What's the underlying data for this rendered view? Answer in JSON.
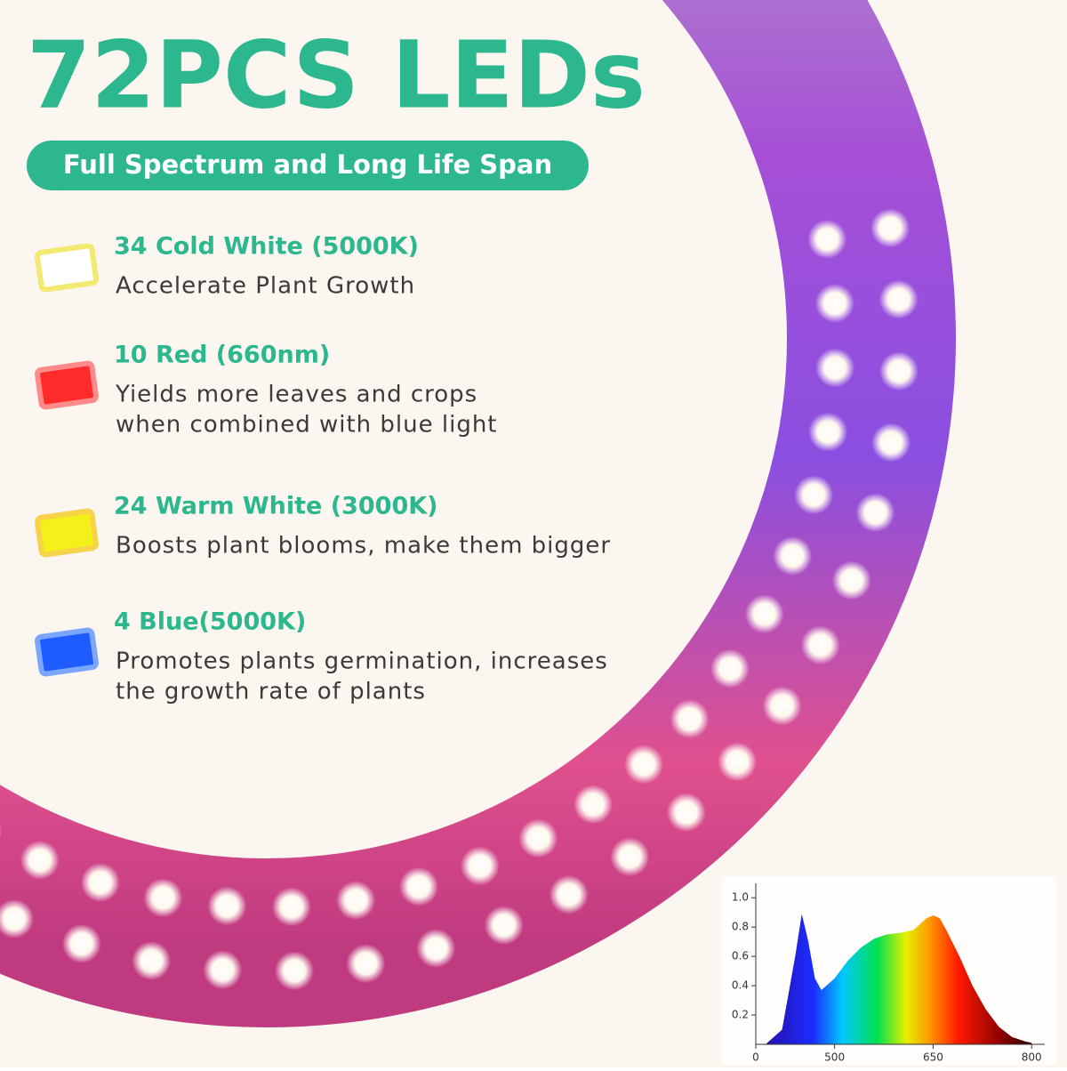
{
  "header": {
    "title": "72PCS LEDs",
    "badge": "Full Spectrum and Long Life Span"
  },
  "items": [
    {
      "heading": "34 Cold White  (5000K)",
      "lines": [
        "Accelerate Plant Growth"
      ]
    },
    {
      "heading": "10 Red  (660nm)",
      "lines": [
        "Yields more leaves and crops",
        "when combined with blue light"
      ]
    },
    {
      "heading": "24 Warm White  (3000K)",
      "lines": [
        "Boosts plant blooms, make them bigger"
      ]
    },
    {
      "heading": "4 Blue(5000K)",
      "lines": [
        "Promotes plants germination, increases",
        "the growth rate of plants"
      ]
    }
  ],
  "chart_data": {
    "type": "area",
    "x": [
      395,
      420,
      440,
      450,
      460,
      470,
      480,
      500,
      520,
      540,
      560,
      580,
      600,
      620,
      640,
      650,
      660,
      670,
      690,
      710,
      730,
      750,
      770,
      790,
      800
    ],
    "values": [
      0,
      0.1,
      0.6,
      0.89,
      0.7,
      0.45,
      0.37,
      0.45,
      0.57,
      0.66,
      0.72,
      0.75,
      0.76,
      0.78,
      0.86,
      0.88,
      0.86,
      0.78,
      0.6,
      0.4,
      0.24,
      0.12,
      0.05,
      0.02,
      0.01
    ],
    "xlim": [
      380,
      820
    ],
    "ylim": [
      0,
      1.05
    ],
    "xticks": [
      {
        "value": 380,
        "label": "0"
      },
      500,
      650,
      800
    ],
    "yticks": [
      0.2,
      0.4,
      0.6,
      0.8,
      {
        "value": 1.0,
        "label": "1.0"
      }
    ]
  }
}
